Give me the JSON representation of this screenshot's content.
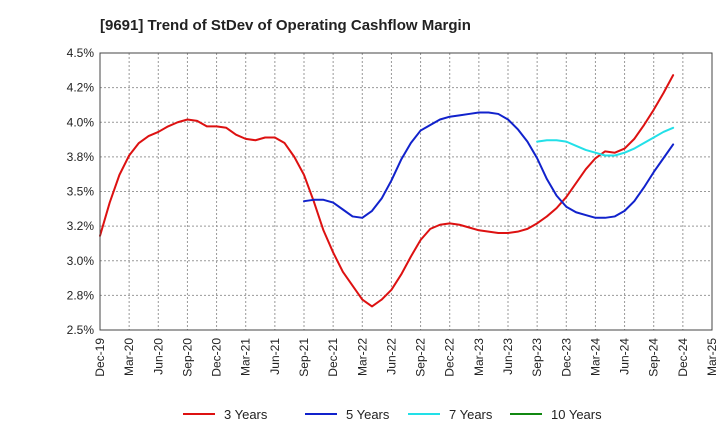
{
  "chart_data": {
    "type": "line",
    "title": "[9691]  Trend of StDev of Operating Cashflow Margin",
    "ylim": [
      2.5,
      4.5
    ],
    "yticks": [
      2.5,
      2.75,
      3.0,
      3.25,
      3.5,
      3.75,
      4.0,
      4.25,
      4.5
    ],
    "ytick_labels": [
      "2.5%",
      "2.8%",
      "3.0%",
      "3.2%",
      "3.5%",
      "3.8%",
      "4.0%",
      "4.2%",
      "4.5%"
    ],
    "xtick_labels": [
      "Dec-19",
      "Mar-20",
      "Jun-20",
      "Sep-20",
      "Dec-20",
      "Mar-21",
      "Jun-21",
      "Sep-21",
      "Dec-21",
      "Mar-22",
      "Jun-22",
      "Sep-22",
      "Dec-22",
      "Mar-23",
      "Jun-23",
      "Sep-23",
      "Dec-23",
      "Mar-24",
      "Jun-24",
      "Sep-24",
      "Dec-24",
      "Mar-25"
    ],
    "grid": true,
    "legend_position": "bottom",
    "series": [
      {
        "name": "3 Years",
        "color": "#dd1111",
        "values": [
          3.18,
          3.42,
          3.62,
          3.76,
          3.85,
          3.9,
          3.93,
          3.97,
          4.0,
          4.02,
          4.01,
          3.97,
          3.97,
          3.96,
          3.91,
          3.88,
          3.87,
          3.89,
          3.89,
          3.85,
          3.75,
          3.62,
          3.43,
          3.22,
          3.06,
          2.92,
          2.82,
          2.72,
          2.67,
          2.72,
          2.79,
          2.9,
          3.03,
          3.15,
          3.23,
          3.26,
          3.27,
          3.26,
          3.24,
          3.22,
          3.21,
          3.2,
          3.2,
          3.21,
          3.23,
          3.27,
          3.32,
          3.38,
          3.46,
          3.56,
          3.66,
          3.74,
          3.79,
          3.78,
          3.81,
          3.88,
          3.98,
          4.09,
          4.21,
          4.34
        ]
      },
      {
        "name": "5 Years",
        "color": "#1122cc",
        "values": [
          null,
          null,
          null,
          null,
          null,
          null,
          null,
          null,
          null,
          null,
          null,
          null,
          null,
          null,
          null,
          null,
          null,
          null,
          null,
          null,
          null,
          3.43,
          3.44,
          3.44,
          3.42,
          3.37,
          3.32,
          3.31,
          3.36,
          3.45,
          3.58,
          3.73,
          3.85,
          3.94,
          3.98,
          4.02,
          4.04,
          4.05,
          4.06,
          4.07,
          4.07,
          4.06,
          4.02,
          3.95,
          3.86,
          3.74,
          3.59,
          3.47,
          3.39,
          3.35,
          3.33,
          3.31,
          3.31,
          3.32,
          3.36,
          3.43,
          3.53,
          3.64,
          3.74,
          3.84
        ]
      },
      {
        "name": "7 Years",
        "color": "#22e0e8",
        "values": [
          null,
          null,
          null,
          null,
          null,
          null,
          null,
          null,
          null,
          null,
          null,
          null,
          null,
          null,
          null,
          null,
          null,
          null,
          null,
          null,
          null,
          null,
          null,
          null,
          null,
          null,
          null,
          null,
          null,
          null,
          null,
          null,
          null,
          null,
          null,
          null,
          null,
          null,
          null,
          null,
          null,
          null,
          null,
          null,
          null,
          3.86,
          3.87,
          3.87,
          3.86,
          3.83,
          3.8,
          3.78,
          3.76,
          3.76,
          3.78,
          3.81,
          3.85,
          3.89,
          3.93,
          3.96
        ]
      },
      {
        "name": "10 Years",
        "color": "#118811",
        "values": []
      }
    ]
  }
}
